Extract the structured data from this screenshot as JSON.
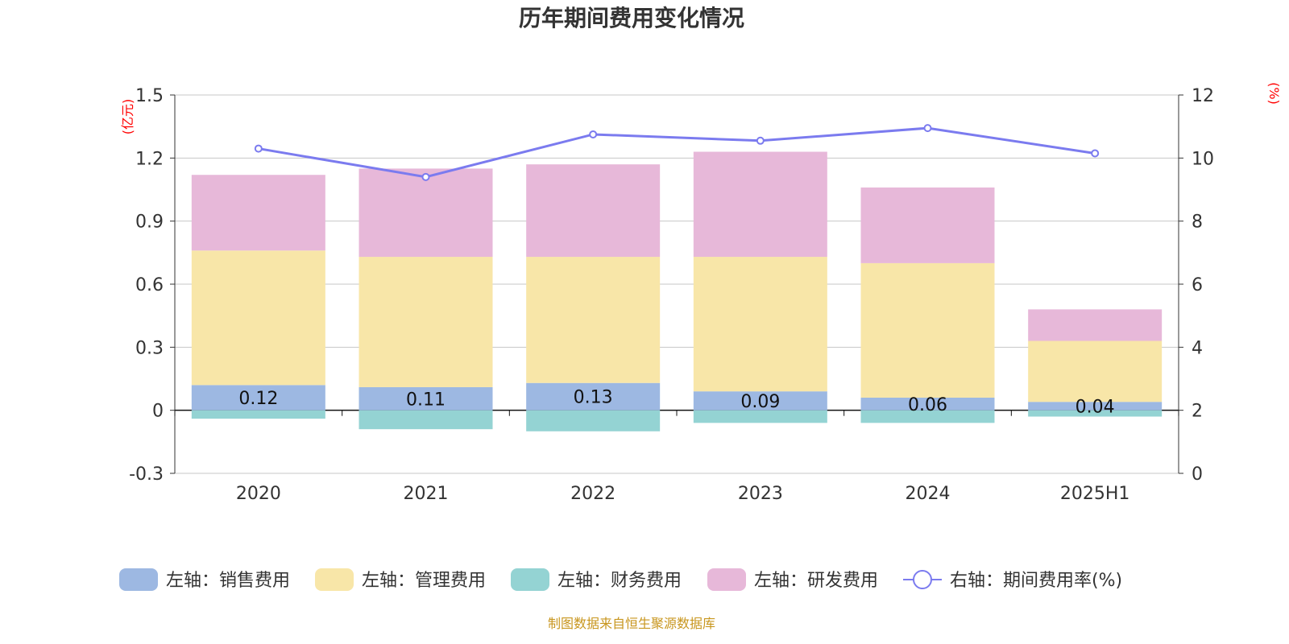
{
  "chart_data": {
    "type": "bar",
    "title": "历年期间费用变化情况",
    "categories": [
      "2020",
      "2021",
      "2022",
      "2023",
      "2024",
      "2025H1"
    ],
    "left_axis": {
      "unit": "(亿元)",
      "ylim": [
        -0.3,
        1.5
      ],
      "ticks": [
        -0.3,
        0,
        0.3,
        0.6,
        0.9,
        1.2,
        1.5
      ],
      "tick_labels": [
        "-0.3",
        "0",
        "0.3",
        "0.6",
        "0.9",
        "1.2",
        "1.5"
      ]
    },
    "right_axis": {
      "unit": "(%)",
      "ylim": [
        0,
        12
      ],
      "ticks": [
        0,
        2,
        4,
        6,
        8,
        10,
        12
      ],
      "tick_labels": [
        "0",
        "2",
        "4",
        "6",
        "8",
        "10",
        "12"
      ]
    },
    "series": [
      {
        "name": "左轴：销售费用",
        "axis": "left",
        "kind": "bar",
        "color": "#9db8e2",
        "values": [
          0.12,
          0.11,
          0.13,
          0.09,
          0.06,
          0.04
        ],
        "data_labels": [
          "0.12",
          "0.11",
          "0.13",
          "0.09",
          "0.06",
          "0.04"
        ]
      },
      {
        "name": "左轴：管理费用",
        "axis": "left",
        "kind": "bar",
        "color": "#f8e6a8",
        "values": [
          0.64,
          0.62,
          0.6,
          0.64,
          0.64,
          0.29
        ]
      },
      {
        "name": "左轴：财务费用",
        "axis": "left",
        "kind": "bar",
        "color": "#94d3d3",
        "values": [
          -0.04,
          -0.09,
          -0.1,
          -0.06,
          -0.06,
          -0.03
        ]
      },
      {
        "name": "左轴：研发费用",
        "axis": "left",
        "kind": "bar",
        "color": "#e7b8d9",
        "values": [
          0.36,
          0.42,
          0.44,
          0.5,
          0.36,
          0.15
        ]
      },
      {
        "name": "右轴：期间费用率(%)",
        "axis": "right",
        "kind": "line",
        "color": "#7b7bef",
        "values": [
          10.3,
          9.4,
          10.75,
          10.55,
          10.95,
          10.15
        ]
      }
    ],
    "grid": true,
    "legend_position": "bottom"
  },
  "source_text": "制图数据来自恒生聚源数据库"
}
